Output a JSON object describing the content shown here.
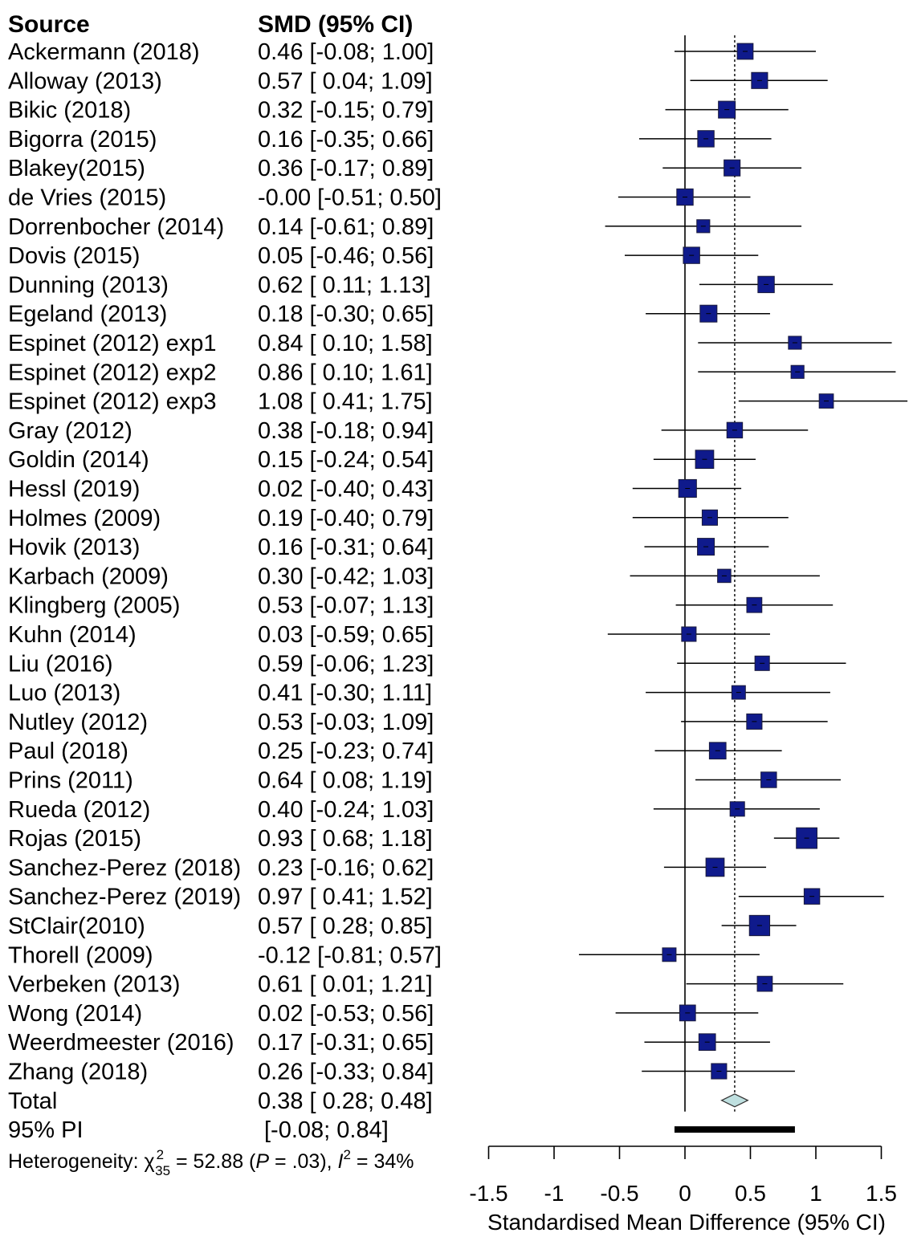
{
  "chart_data": {
    "type": "forest",
    "title": "",
    "header": {
      "source": "Source",
      "smd": "SMD (95% CI)"
    },
    "studies": [
      {
        "source": "Ackermann (2018)",
        "ci_text": "0.46 [-0.08; 1.00]",
        "smd": 0.46,
        "lo": -0.08,
        "hi": 1.0,
        "weight": 2.6
      },
      {
        "source": "Alloway (2013)",
        "ci_text": "0.57 [ 0.04; 1.09]",
        "smd": 0.57,
        "lo": 0.04,
        "hi": 1.09,
        "weight": 2.7
      },
      {
        "source": "Bikic (2018)",
        "ci_text": "0.32 [-0.15; 0.79]",
        "smd": 0.32,
        "lo": -0.15,
        "hi": 0.79,
        "weight": 3.0
      },
      {
        "source": "Bigorra (2015)",
        "ci_text": "0.16 [-0.35; 0.66]",
        "smd": 0.16,
        "lo": -0.35,
        "hi": 0.66,
        "weight": 2.8
      },
      {
        "source": "Blakey(2015)",
        "ci_text": "0.36 [-0.17; 0.89]",
        "smd": 0.36,
        "lo": -0.17,
        "hi": 0.89,
        "weight": 2.7
      },
      {
        "source": "de Vries (2015)",
        "ci_text": "-0.00 [-0.51; 0.50]",
        "smd": -0.0,
        "lo": -0.51,
        "hi": 0.5,
        "weight": 2.8
      },
      {
        "source": "Dorrenbocher (2014)",
        "ci_text": "0.14 [-0.61; 0.89]",
        "smd": 0.14,
        "lo": -0.61,
        "hi": 0.89,
        "weight": 1.6
      },
      {
        "source": "Dovis (2015)",
        "ci_text": "0.05 [-0.46; 0.56]",
        "smd": 0.05,
        "lo": -0.46,
        "hi": 0.56,
        "weight": 2.8
      },
      {
        "source": "Dunning (2013)",
        "ci_text": "0.62 [ 0.11; 1.13]",
        "smd": 0.62,
        "lo": 0.11,
        "hi": 1.13,
        "weight": 2.8
      },
      {
        "source": "Egeland (2013)",
        "ci_text": "0.18 [-0.30; 0.65]",
        "smd": 0.18,
        "lo": -0.3,
        "hi": 0.65,
        "weight": 3.0
      },
      {
        "source": "Espinet (2012) exp1",
        "ci_text": "0.84 [ 0.10; 1.58]",
        "smd": 0.84,
        "lo": 0.1,
        "hi": 1.58,
        "weight": 1.6
      },
      {
        "source": "Espinet (2012) exp2",
        "ci_text": "0.86 [ 0.10; 1.61]",
        "smd": 0.86,
        "lo": 0.1,
        "hi": 1.61,
        "weight": 1.6
      },
      {
        "source": "Espinet (2012) exp3",
        "ci_text": "1.08 [ 0.41; 1.75]",
        "smd": 1.08,
        "lo": 0.41,
        "hi": 1.75,
        "weight": 2.0
      },
      {
        "source": "Gray (2012)",
        "ci_text": "0.38 [-0.18; 0.94]",
        "smd": 0.38,
        "lo": -0.18,
        "hi": 0.94,
        "weight": 2.5
      },
      {
        "source": "Goldin (2014)",
        "ci_text": "0.15 [-0.24; 0.54]",
        "smd": 0.15,
        "lo": -0.24,
        "hi": 0.54,
        "weight": 3.6
      },
      {
        "source": "Hessl (2019)",
        "ci_text": "0.02 [-0.40; 0.43]",
        "smd": 0.02,
        "lo": -0.4,
        "hi": 0.43,
        "weight": 3.4
      },
      {
        "source": "Holmes (2009)",
        "ci_text": "0.19 [-0.40; 0.79]",
        "smd": 0.19,
        "lo": -0.4,
        "hi": 0.79,
        "weight": 2.4
      },
      {
        "source": "Hovik (2013)",
        "ci_text": "0.16 [-0.31; 0.64]",
        "smd": 0.16,
        "lo": -0.31,
        "hi": 0.64,
        "weight": 3.0
      },
      {
        "source": "Karbach (2009)",
        "ci_text": "0.30 [-0.42; 1.03]",
        "smd": 0.3,
        "lo": -0.42,
        "hi": 1.03,
        "weight": 1.7
      },
      {
        "source": "Klingberg (2005)",
        "ci_text": "0.53 [-0.07; 1.13]",
        "smd": 0.53,
        "lo": -0.07,
        "hi": 1.13,
        "weight": 2.3
      },
      {
        "source": "Kuhn (2014)",
        "ci_text": "0.03 [-0.59; 0.65]",
        "smd": 0.03,
        "lo": -0.59,
        "hi": 0.65,
        "weight": 2.1
      },
      {
        "source": "Liu (2016)",
        "ci_text": "0.59 [-0.06; 1.23]",
        "smd": 0.59,
        "lo": -0.06,
        "hi": 1.23,
        "weight": 2.1
      },
      {
        "source": "Luo (2013)",
        "ci_text": "0.41 [-0.30; 1.11]",
        "smd": 0.41,
        "lo": -0.3,
        "hi": 1.11,
        "weight": 1.8
      },
      {
        "source": "Nutley (2012)",
        "ci_text": "0.53 [-0.03; 1.09]",
        "smd": 0.53,
        "lo": -0.03,
        "hi": 1.09,
        "weight": 2.4
      },
      {
        "source": "Paul (2018)",
        "ci_text": "0.25 [-0.23; 0.74]",
        "smd": 0.25,
        "lo": -0.23,
        "hi": 0.74,
        "weight": 2.9
      },
      {
        "source": "Prins (2011)",
        "ci_text": "0.64 [ 0.08; 1.19]",
        "smd": 0.64,
        "lo": 0.08,
        "hi": 1.19,
        "weight": 2.5
      },
      {
        "source": "Rueda (2012)",
        "ci_text": "0.40 [-0.24; 1.03]",
        "smd": 0.4,
        "lo": -0.24,
        "hi": 1.03,
        "weight": 2.1
      },
      {
        "source": "Rojas (2015)",
        "ci_text": "0.93 [ 0.68; 1.18]",
        "smd": 0.93,
        "lo": 0.68,
        "hi": 1.18,
        "weight": 4.8
      },
      {
        "source": "Sanchez-Perez (2018)",
        "ci_text": "0.23 [-0.16; 0.62]",
        "smd": 0.23,
        "lo": -0.16,
        "hi": 0.62,
        "weight": 3.6
      },
      {
        "source": "Sanchez-Perez (2019)",
        "ci_text": "0.97 [ 0.41; 1.52]",
        "smd": 0.97,
        "lo": 0.41,
        "hi": 1.52,
        "weight": 2.5
      },
      {
        "source": "StClair(2010)",
        "ci_text": "0.57 [ 0.28; 0.85]",
        "smd": 0.57,
        "lo": 0.28,
        "hi": 0.85,
        "weight": 4.6
      },
      {
        "source": "Thorell (2009)",
        "ci_text": "-0.12 [-0.81; 0.57]",
        "smd": -0.12,
        "lo": -0.81,
        "hi": 0.57,
        "weight": 1.8
      },
      {
        "source": "Verbeken (2013)",
        "ci_text": "0.61 [ 0.01; 1.21]",
        "smd": 0.61,
        "lo": 0.01,
        "hi": 1.21,
        "weight": 2.3
      },
      {
        "source": "Wong (2014)",
        "ci_text": "0.02 [-0.53; 0.56]",
        "smd": 0.02,
        "lo": -0.53,
        "hi": 0.56,
        "weight": 2.6
      },
      {
        "source": "Weerdmeester (2016)",
        "ci_text": "0.17 [-0.31; 0.65]",
        "smd": 0.17,
        "lo": -0.31,
        "hi": 0.65,
        "weight": 2.9
      },
      {
        "source": "Zhang (2018)",
        "ci_text": "0.26 [-0.33; 0.84]",
        "smd": 0.26,
        "lo": -0.33,
        "hi": 0.84,
        "weight": 2.4
      }
    ],
    "total": {
      "source": "Total",
      "ci_text": "0.38 [ 0.28; 0.48]",
      "smd": 0.38,
      "lo": 0.28,
      "hi": 0.48
    },
    "prediction_interval": {
      "label": "95% PI",
      "ci_text": "[-0.08; 0.84]",
      "lo": -0.08,
      "hi": 0.84
    },
    "heterogeneity": {
      "prefix": "Heterogeneity: ",
      "chi": "χ",
      "chi_sup": "2",
      "chi_sub": "35",
      "middle": " = 52.88 (",
      "p": "P",
      "p_value": " = .03), ",
      "i": "I",
      "i_sup": "2",
      "i_value": " = 34%"
    },
    "x_ticks": [
      -1.5,
      -1,
      -0.5,
      0,
      0.5,
      1,
      1.5
    ],
    "x_tick_labels": [
      "-1.5",
      "-1",
      "-0.5",
      "0",
      "0.5",
      "1",
      "1.5"
    ],
    "xlim": [
      -1.5,
      1.5
    ],
    "xlabel": "Standardised Mean Difference (95% CI)",
    "reference_line": 0,
    "pooled_line": 0.38
  },
  "colors": {
    "square": "#0f1a8c",
    "square_stroke": "#1a1a3a",
    "diamond_fill": "#bfe0e0",
    "diamond_stroke": "#333333",
    "line": "#000000",
    "text": "#111111"
  }
}
